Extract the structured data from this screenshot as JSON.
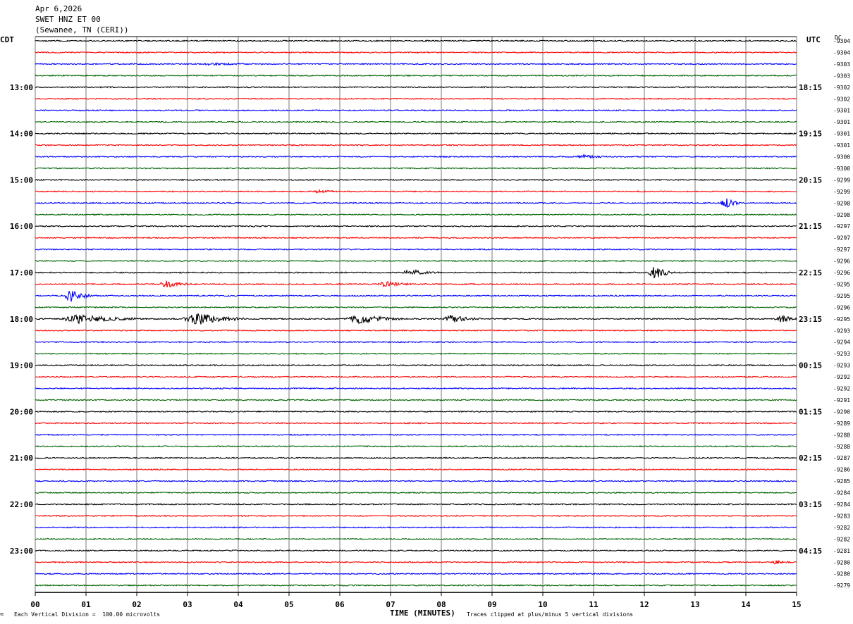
{
  "header": {
    "date": "Apr 6,2026",
    "station": "SWET HNZ ET 00",
    "location": "(Sewanee, TN (CERI))"
  },
  "corners": {
    "left_tz": "CDT",
    "right_tz": "UTC",
    "dc_label": "DC"
  },
  "footer": {
    "scale_note": "Each Vertical Division =  100.00 microvolts",
    "xlabel": "TIME (MINUTES)",
    "clip_note": "Traces clipped at plus/minus 5 vertical divisions",
    "tiny_mark": "≈"
  },
  "colors": {
    "trace_cycle": [
      "#000000",
      "#ff0000",
      "#0000ff",
      "#006400"
    ],
    "grid": "#777777"
  },
  "chart_data": {
    "type": "line",
    "title": "",
    "xlabel": "TIME (MINUTES)",
    "xlim": [
      0,
      15
    ],
    "x_ticks": [
      "00",
      "01",
      "02",
      "03",
      "04",
      "05",
      "06",
      "07",
      "08",
      "09",
      "10",
      "11",
      "12",
      "13",
      "14",
      "15"
    ],
    "rows_per_hour": 4,
    "left_hour_labels": [
      "13:00",
      "14:00",
      "15:00",
      "16:00",
      "17:00",
      "18:00",
      "19:00",
      "20:00",
      "21:00",
      "22:00",
      "23:00"
    ],
    "right_hour_labels": [
      "18:15",
      "19:15",
      "20:15",
      "21:15",
      "22:15",
      "23:15",
      "00:15",
      "01:15",
      "02:15",
      "03:15",
      "04:15"
    ],
    "dc_offsets": [
      -9304,
      -9304,
      -9303,
      -9303,
      -9302,
      -9302,
      -9301,
      -9301,
      -9301,
      -9301,
      -9300,
      -9300,
      -9299,
      -9299,
      -9298,
      -9298,
      -9297,
      -9297,
      -9297,
      -9296,
      -9296,
      -9295,
      -9295,
      -9296,
      -9295,
      -9293,
      -9294,
      -9293,
      -9293,
      -9292,
      -9292,
      -9291,
      -9290,
      -9289,
      -9288,
      -9288,
      -9287,
      -9286,
      -9285,
      -9284,
      -9284,
      -9283,
      -9282,
      -9282,
      -9281,
      -9280,
      -9280,
      -9279
    ],
    "events": [
      {
        "row": 45,
        "minute": 14.6,
        "dur": 0.3,
        "amp": 1.0
      },
      {
        "row": 2,
        "minute": 3.5,
        "dur": 0.6,
        "amp": 0.6
      },
      {
        "row": 10,
        "minute": 10.8,
        "dur": 0.5,
        "amp": 0.8
      },
      {
        "row": 13,
        "minute": 5.6,
        "dur": 0.3,
        "amp": 1.0
      },
      {
        "row": 14,
        "minute": 13.6,
        "dur": 0.3,
        "amp": 3.0
      },
      {
        "row": 20,
        "minute": 7.4,
        "dur": 0.6,
        "amp": 1.5
      },
      {
        "row": 20,
        "minute": 12.2,
        "dur": 0.4,
        "amp": 3.5
      },
      {
        "row": 21,
        "minute": 2.6,
        "dur": 0.5,
        "amp": 1.8
      },
      {
        "row": 21,
        "minute": 6.9,
        "dur": 0.5,
        "amp": 1.5
      },
      {
        "row": 22,
        "minute": 0.7,
        "dur": 0.4,
        "amp": 3.5
      },
      {
        "row": 24,
        "minute": 0.9,
        "dur": 1.1,
        "amp": 2.5
      },
      {
        "row": 24,
        "minute": 3.2,
        "dur": 0.9,
        "amp": 3.5
      },
      {
        "row": 24,
        "minute": 6.4,
        "dur": 0.9,
        "amp": 2.5
      },
      {
        "row": 24,
        "minute": 8.2,
        "dur": 0.6,
        "amp": 2.0
      },
      {
        "row": 24,
        "minute": 14.7,
        "dur": 0.4,
        "amp": 2.0
      }
    ]
  }
}
